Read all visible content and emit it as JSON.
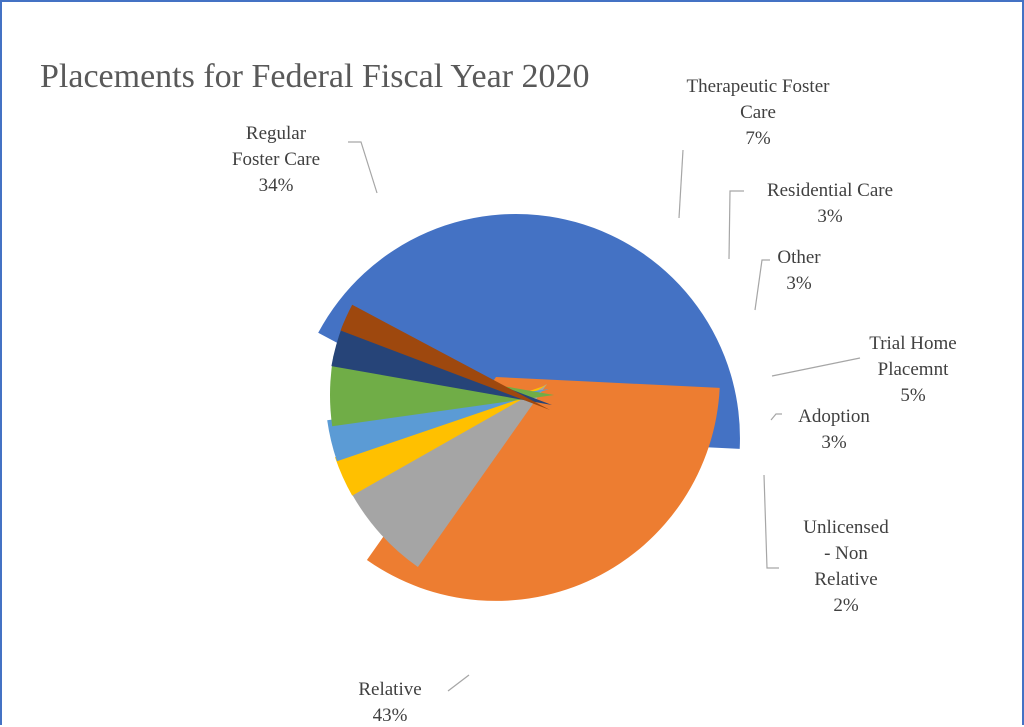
{
  "chart_data": {
    "type": "pie",
    "title": "Placements for Federal Fiscal Year 2020",
    "slices": [
      {
        "name": "Relative",
        "value": 43,
        "label_lines": [
          "Relative"
        ],
        "pct_text": "43%",
        "color": "#4472c4"
      },
      {
        "name": "Regular Foster Care",
        "value": 34,
        "label_lines": [
          "Regular",
          "Foster Care"
        ],
        "pct_text": "34%",
        "color": "#ed7d31"
      },
      {
        "name": "Therapeutic Foster Care",
        "value": 7,
        "label_lines": [
          "Therapeutic Foster",
          "Care"
        ],
        "pct_text": "7%",
        "color": "#a5a5a5"
      },
      {
        "name": "Residential Care",
        "value": 3,
        "label_lines": [
          "Residential Care"
        ],
        "pct_text": "3%",
        "color": "#ffc000"
      },
      {
        "name": "Other",
        "value": 3,
        "label_lines": [
          "Other"
        ],
        "pct_text": "3%",
        "color": "#5b9bd5"
      },
      {
        "name": "Trial Home Placemnt",
        "value": 5,
        "label_lines": [
          "Trial Home",
          "Placemnt"
        ],
        "pct_text": "5%",
        "color": "#70ad47"
      },
      {
        "name": "Adoption",
        "value": 3,
        "label_lines": [
          "Adoption"
        ],
        "pct_text": "3%",
        "color": "#264478"
      },
      {
        "name": "Unlicensed - Non Relative",
        "value": 2,
        "label_lines": [
          "Unlicensed",
          "- Non",
          "Relative"
        ],
        "pct_text": "2%",
        "color": "#9e480e"
      }
    ],
    "legend": "none",
    "data_labels": "outside with leader lines"
  }
}
